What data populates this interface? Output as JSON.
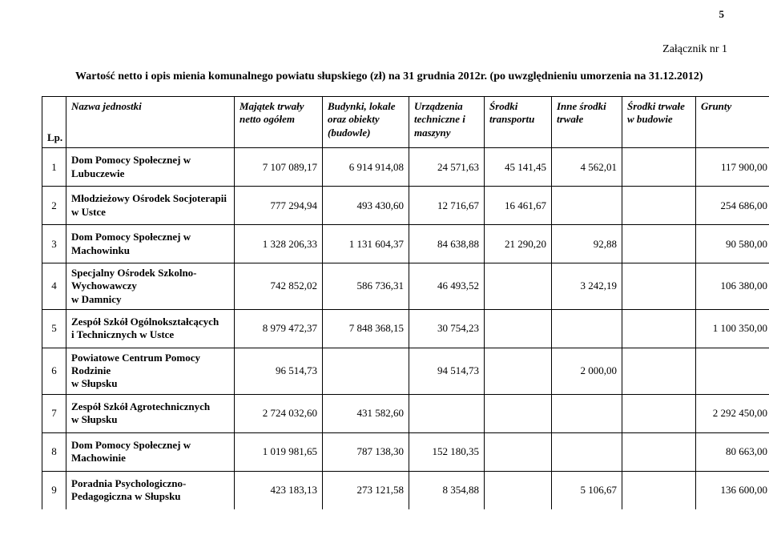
{
  "page_number": "5",
  "attachment_label": "Załącznik nr 1",
  "title": "Wartość netto i opis mienia komunalnego powiatu słupskiego (zł) na 31 grudnia 2012r. (po uwzględnieniu umorzenia na 31.12.2012)",
  "columns": {
    "lp": "Lp.",
    "name": "Nazwa jednostki",
    "c1": "Majątek trwały netto ogółem",
    "c2": "Budynki, lokale oraz obiekty (budowle)",
    "c3": "Urządzenia techniczne i maszyny",
    "c4": "Środki transportu",
    "c5": "Inne środki trwałe",
    "c6": "Środki trwałe w budowie",
    "c7": "Grunty"
  },
  "rows": [
    {
      "lp": "1",
      "name": "Dom Pomocy Społecznej w Lubuczewie",
      "c1": "7 107 089,17",
      "c2": "6 914 914,08",
      "c3": "24 571,63",
      "c4": "45 141,45",
      "c5": "4 562,01",
      "c6": "",
      "c7": "117 900,00"
    },
    {
      "lp": "2",
      "name": "Młodzieżowy Ośrodek Socjoterapii w Ustce",
      "c1": "777 294,94",
      "c2": "493 430,60",
      "c3": "12 716,67",
      "c4": "16 461,67",
      "c5": "",
      "c6": "",
      "c7": "254 686,00"
    },
    {
      "lp": "3",
      "name": "Dom Pomocy Społecznej w Machowinku",
      "c1": "1 328 206,33",
      "c2": "1 131 604,37",
      "c3": "84 638,88",
      "c4": "21 290,20",
      "c5": "92,88",
      "c6": "",
      "c7": "90 580,00"
    },
    {
      "lp": "4",
      "name": "Specjalny Ośrodek Szkolno-Wychowawczy\nw Damnicy",
      "c1": "742 852,02",
      "c2": "586 736,31",
      "c3": "46 493,52",
      "c4": "",
      "c5": "3 242,19",
      "c6": "",
      "c7": "106 380,00"
    },
    {
      "lp": "5",
      "name": "Zespół Szkół Ogólnokształcących\ni Technicznych w Ustce",
      "c1": "8 979 472,37",
      "c2": "7 848 368,15",
      "c3": "30 754,23",
      "c4": "",
      "c5": "",
      "c6": "",
      "c7": "1 100 350,00"
    },
    {
      "lp": "6",
      "name": "Powiatowe Centrum Pomocy Rodzinie\nw Słupsku",
      "c1": "96 514,73",
      "c2": "",
      "c3": "94 514,73",
      "c4": "",
      "c5": "2 000,00",
      "c6": "",
      "c7": ""
    },
    {
      "lp": "7",
      "name": "Zespół Szkół Agrotechnicznych\nw Słupsku",
      "c1": "2 724 032,60",
      "c2": "431 582,60",
      "c3": "",
      "c4": "",
      "c5": "",
      "c6": "",
      "c7": "2 292 450,00"
    },
    {
      "lp": "8",
      "name": "Dom Pomocy Społecznej w Machowinie",
      "c1": "1 019 981,65",
      "c2": "787 138,30",
      "c3": "152 180,35",
      "c4": "",
      "c5": "",
      "c6": "",
      "c7": "80 663,00"
    },
    {
      "lp": "9",
      "name": "Poradnia Psychologiczno-Pedagogiczna w Słupsku",
      "c1": "423 183,13",
      "c2": "273 121,58",
      "c3": "8 354,88",
      "c4": "",
      "c5": "5 106,67",
      "c6": "",
      "c7": "136 600,00"
    }
  ],
  "style": {
    "font_family": "Times New Roman",
    "body_font_size_pt": 10,
    "header_italic": true,
    "header_bold": true,
    "name_bold": true,
    "border_color": "#000000",
    "background_color": "#ffffff",
    "text_color": "#000000",
    "number_align": "right",
    "lp_align": "center"
  }
}
